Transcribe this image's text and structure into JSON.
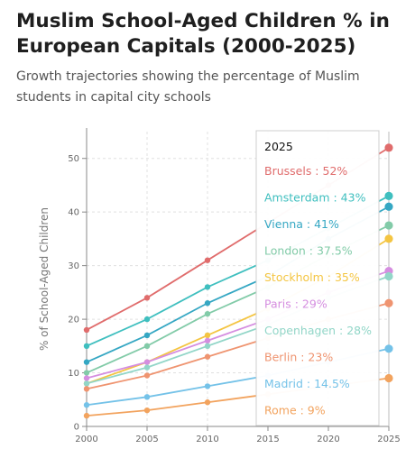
{
  "title": "Muslim School-Aged Children % in European Capitals (2000-2025)",
  "subtitle": "Growth trajectories showing the percentage of Muslim students in capital city schools",
  "chart_data": {
    "type": "line",
    "x": [
      2000,
      2005,
      2010,
      2015,
      2020,
      2025
    ],
    "xlim": [
      2000,
      2025
    ],
    "ylim": [
      0,
      55
    ],
    "ylabel": "% of School-Aged Children",
    "xticks": [
      2000,
      2005,
      2010,
      2015,
      2020,
      2025
    ],
    "yticks": [
      0,
      10,
      20,
      30,
      40,
      50
    ],
    "grid": true,
    "series": [
      {
        "name": "Brussels",
        "color": "#e06c6c",
        "values": [
          18,
          24,
          31,
          38,
          45,
          52
        ]
      },
      {
        "name": "Amsterdam",
        "color": "#3fbfbf",
        "values": [
          15,
          20,
          26,
          31,
          37,
          43
        ]
      },
      {
        "name": "Vienna",
        "color": "#35a7c3",
        "values": [
          12,
          17,
          23,
          28,
          35,
          41
        ]
      },
      {
        "name": "London",
        "color": "#82cba8",
        "values": [
          10,
          15,
          21,
          26,
          32,
          37.5
        ]
      },
      {
        "name": "Stockholm",
        "color": "#f4c542",
        "values": [
          8,
          12,
          17,
          22,
          28,
          35
        ]
      },
      {
        "name": "Paris",
        "color": "#d58ee0",
        "values": [
          9,
          12,
          16,
          20,
          25,
          29
        ]
      },
      {
        "name": "Copenhagen",
        "color": "#92d6c8",
        "values": [
          8,
          11,
          15,
          19,
          24,
          28
        ]
      },
      {
        "name": "Berlin",
        "color": "#ef9470",
        "values": [
          7,
          9.5,
          13,
          16.5,
          20,
          23
        ]
      },
      {
        "name": "Madrid",
        "color": "#74c2e8",
        "values": [
          4,
          5.5,
          7.5,
          9.5,
          12,
          14.5
        ]
      },
      {
        "name": "Rome",
        "color": "#f2a35e",
        "values": [
          2,
          3,
          4.5,
          6,
          7.5,
          9
        ]
      }
    ],
    "tooltip": {
      "header": "2025",
      "items": [
        "Brussels : 52%",
        "Amsterdam : 43%",
        "Vienna : 41%",
        "London : 37.5%",
        "Stockholm : 35%",
        "Paris : 29%",
        "Copenhagen : 28%",
        "Berlin : 23%",
        "Madrid : 14.5%",
        "Rome : 9%"
      ]
    }
  }
}
